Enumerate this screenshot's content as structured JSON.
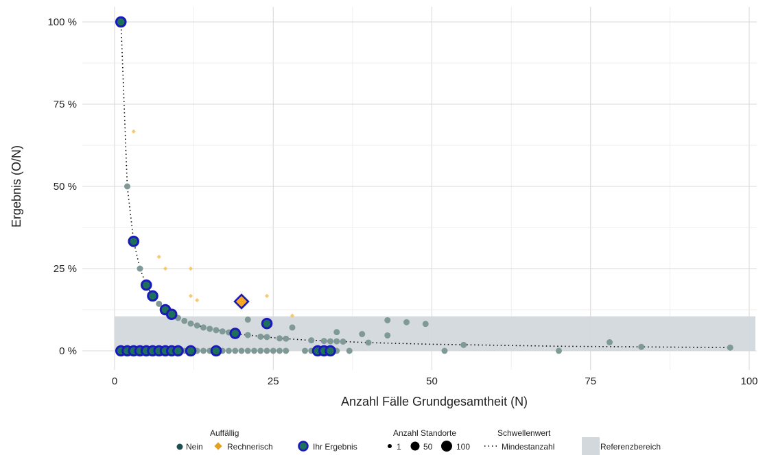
{
  "chart_data": {
    "type": "scatter",
    "xlabel": "Anzahl Fälle Grundgesamtheit (N)",
    "ylabel": "Ergebnis (O/N)",
    "xlim": [
      0,
      100
    ],
    "ylim": [
      0,
      100
    ],
    "x_ticks": [
      0,
      25,
      50,
      75,
      100
    ],
    "x_tick_labels": [
      "0",
      "25",
      "50",
      "75",
      "100"
    ],
    "y_ticks": [
      0,
      25,
      50,
      75,
      100
    ],
    "y_tick_labels": [
      "0 %",
      "25 %",
      "50 %",
      "75 %",
      "100 %"
    ],
    "grid": true,
    "reference_range": [
      0,
      10.5
    ],
    "colors": {
      "nein": "#7f9a96",
      "rechnerisch": "#f5b841",
      "ihr_ergebnis_outline": "#1a1ab8",
      "ihr_ergebnis_fill": "#1e6f5c",
      "ihr_ergebnis_rechnerisch_fill": "#f5a623",
      "reference": "#d3d8dd",
      "grid": "#d9d9d9",
      "threshold": "#000000"
    },
    "threshold_curve": {
      "name": "Mindestanzahl",
      "points": [
        [
          1,
          100
        ],
        [
          2,
          50
        ],
        [
          3,
          33.3
        ],
        [
          4,
          25
        ],
        [
          5,
          20
        ],
        [
          6,
          16.7
        ],
        [
          7,
          14.3
        ],
        [
          8,
          12.5
        ],
        [
          10,
          10
        ],
        [
          12,
          8.3
        ],
        [
          15,
          6.7
        ],
        [
          20,
          5
        ],
        [
          25,
          4
        ],
        [
          30,
          3.3
        ],
        [
          40,
          2.5
        ],
        [
          50,
          2
        ],
        [
          60,
          1.7
        ],
        [
          70,
          1.4
        ],
        [
          80,
          1.25
        ],
        [
          90,
          1.1
        ],
        [
          97,
          1.03
        ]
      ]
    },
    "series": [
      {
        "name": "Nein",
        "points": [
          [
            2,
            50
          ],
          [
            4,
            25
          ],
          [
            7,
            14.3
          ],
          [
            10,
            10
          ],
          [
            11,
            9.1
          ],
          [
            12,
            8.3
          ],
          [
            13,
            7.7
          ],
          [
            14,
            7.1
          ],
          [
            15,
            6.7
          ],
          [
            16,
            6.3
          ],
          [
            17,
            5.9
          ],
          [
            18,
            5.6
          ],
          [
            21,
            4.8
          ],
          [
            21,
            9.5
          ],
          [
            23,
            4.3
          ],
          [
            24,
            4.2
          ],
          [
            26,
            3.8
          ],
          [
            27,
            3.7
          ],
          [
            28,
            7.1
          ],
          [
            31,
            3.2
          ],
          [
            33,
            3.0
          ],
          [
            34,
            2.9
          ],
          [
            35,
            5.7
          ],
          [
            35,
            2.9
          ],
          [
            36,
            2.8
          ],
          [
            39,
            5.1
          ],
          [
            40,
            2.5
          ],
          [
            43,
            9.3
          ],
          [
            43,
            4.7
          ],
          [
            46,
            8.7
          ],
          [
            49,
            8.2
          ],
          [
            55,
            1.8
          ],
          [
            78,
            2.6
          ],
          [
            83,
            1.2
          ],
          [
            97,
            1.0
          ],
          [
            2,
            0
          ],
          [
            3,
            0
          ],
          [
            4,
            0
          ],
          [
            5,
            0
          ],
          [
            6,
            0
          ],
          [
            7,
            0
          ],
          [
            8,
            0
          ],
          [
            9,
            0
          ],
          [
            10,
            0
          ],
          [
            11,
            0
          ],
          [
            12,
            0
          ],
          [
            13,
            0
          ],
          [
            14,
            0
          ],
          [
            15,
            0
          ],
          [
            16,
            0
          ],
          [
            17,
            0
          ],
          [
            18,
            0
          ],
          [
            19,
            0
          ],
          [
            20,
            0
          ],
          [
            21,
            0
          ],
          [
            22,
            0
          ],
          [
            23,
            0
          ],
          [
            24,
            0
          ],
          [
            25,
            0
          ],
          [
            26,
            0
          ],
          [
            27,
            0
          ],
          [
            30,
            0
          ],
          [
            31,
            0
          ],
          [
            33,
            0
          ],
          [
            35,
            0
          ],
          [
            37,
            0
          ],
          [
            52,
            0
          ],
          [
            70,
            0
          ]
        ]
      },
      {
        "name": "Rechnerisch",
        "points": [
          [
            3,
            66.7
          ],
          [
            7,
            28.6
          ],
          [
            8,
            25
          ],
          [
            12,
            25
          ],
          [
            12,
            16.7
          ],
          [
            13,
            15.4
          ],
          [
            24,
            16.7
          ],
          [
            28,
            10.7
          ]
        ]
      },
      {
        "name": "Ihr Ergebnis",
        "points": [
          [
            1,
            100
          ],
          [
            3,
            33.3
          ],
          [
            5,
            20
          ],
          [
            6,
            16.7
          ],
          [
            8,
            12.5
          ],
          [
            9,
            11.1
          ],
          [
            19,
            5.3
          ],
          [
            24,
            8.3
          ],
          [
            1,
            0
          ],
          [
            2,
            0
          ],
          [
            3,
            0
          ],
          [
            4,
            0
          ],
          [
            5,
            0
          ],
          [
            6,
            0
          ],
          [
            7,
            0
          ],
          [
            8,
            0
          ],
          [
            9,
            0
          ],
          [
            10,
            0
          ],
          [
            12,
            0
          ],
          [
            16,
            0
          ],
          [
            32,
            0
          ],
          [
            33,
            0
          ],
          [
            34,
            0
          ]
        ],
        "rechnerisch_points": [
          [
            20,
            15
          ]
        ]
      }
    ],
    "legend": {
      "placement": "bottom",
      "auffaellig_title": "Auffällig",
      "nein": "Nein",
      "rechnerisch": "Rechnerisch",
      "ihr_ergebnis": "Ihr Ergebnis",
      "standorte_title": "Anzahl Standorte",
      "standorte_sizes": [
        "1",
        "50",
        "100"
      ],
      "schwellenwert_title": "Schwellenwert",
      "mindestanzahl": "Mindestanzahl",
      "referenzbereich": "Referenzbereich"
    }
  }
}
